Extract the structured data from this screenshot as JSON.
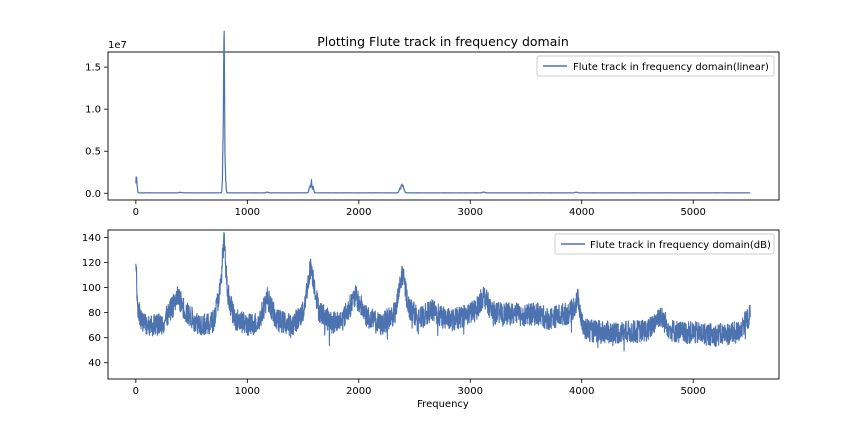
{
  "figure": {
    "title": "Plotting Flute track in frequency domain",
    "xlabel": "Frequency",
    "line_color": "#4c72b0"
  },
  "chart_data": [
    {
      "type": "line",
      "title": "Plotting Flute track in frequency domain",
      "xlim": [
        -250,
        5770
      ],
      "ylim": [
        -0.08,
        1.68
      ],
      "scale_label": "1e7",
      "xticks": [
        0,
        1000,
        2000,
        3000,
        4000,
        5000
      ],
      "yticks": [
        0.0,
        0.5,
        1.0,
        1.5
      ],
      "ytick_labels": [
        "0.0",
        "0.5",
        "1.0",
        "1.5"
      ],
      "legend": "top-right",
      "grid": false,
      "series": [
        {
          "name": "Flute track in frequency domain(linear)",
          "baseline": 0.004,
          "noise": 0.002,
          "peaks": [
            {
              "x": 5,
              "y": 0.22,
              "w": 6
            },
            {
              "x": 783,
              "y": 0.55,
              "w": 5
            },
            {
              "x": 788,
              "y": 1.15,
              "w": 3
            },
            {
              "x": 792,
              "y": 1.62,
              "w": 2.5
            },
            {
              "x": 796,
              "y": 0.87,
              "w": 3
            },
            {
              "x": 802,
              "y": 0.3,
              "w": 5
            },
            {
              "x": 1560,
              "y": 0.11,
              "w": 6
            },
            {
              "x": 1575,
              "y": 0.17,
              "w": 4
            },
            {
              "x": 1590,
              "y": 0.08,
              "w": 6
            },
            {
              "x": 2370,
              "y": 0.06,
              "w": 8
            },
            {
              "x": 2385,
              "y": 0.1,
              "w": 6
            },
            {
              "x": 2400,
              "y": 0.08,
              "w": 8
            },
            {
              "x": 1180,
              "y": 0.01,
              "w": 10
            },
            {
              "x": 3120,
              "y": 0.012,
              "w": 10
            },
            {
              "x": 3950,
              "y": 0.01,
              "w": 10
            },
            {
              "x": 400,
              "y": 0.008,
              "w": 10
            }
          ],
          "x_range": [
            0,
            5512
          ]
        }
      ]
    },
    {
      "type": "line",
      "xlabel": "Frequency",
      "xlim": [
        -250,
        5770
      ],
      "ylim": [
        27,
        146
      ],
      "xticks": [
        0,
        1000,
        2000,
        3000,
        4000,
        5000
      ],
      "yticks": [
        40,
        60,
        80,
        100,
        120,
        140
      ],
      "legend": "top-right",
      "grid": false,
      "series": [
        {
          "name": "Flute track in frequency domain(dB)",
          "x_range": [
            0,
            5512
          ],
          "envelope_x": [
            0,
            15,
            60,
            150,
            250,
            380,
            450,
            550,
            650,
            700,
            760,
            790,
            820,
            880,
            1000,
            1100,
            1180,
            1260,
            1400,
            1500,
            1570,
            1640,
            1750,
            1850,
            1970,
            2080,
            2200,
            2330,
            2390,
            2450,
            2550,
            2650,
            2750,
            2850,
            2950,
            3050,
            3120,
            3200,
            3300,
            3400,
            3500,
            3600,
            3700,
            3800,
            3900,
            3970,
            4010,
            4100,
            4300,
            4500,
            4600,
            4700,
            4800,
            4900,
            5000,
            5100,
            5200,
            5300,
            5400,
            5512
          ],
          "envelope_y": [
            126,
            85,
            72,
            70,
            72,
            93,
            80,
            72,
            70,
            74,
            100,
            140,
            98,
            76,
            70,
            72,
            92,
            74,
            70,
            80,
            118,
            82,
            72,
            74,
            93,
            76,
            70,
            80,
            112,
            84,
            75,
            82,
            76,
            74,
            78,
            82,
            94,
            80,
            79,
            79,
            78,
            79,
            75,
            78,
            80,
            91,
            68,
            65,
            64,
            65,
            66,
            78,
            66,
            64,
            64,
            63,
            62,
            63,
            64,
            78
          ],
          "amplitude": 9,
          "min_value": 29,
          "max_value": 144
        }
      ]
    }
  ]
}
